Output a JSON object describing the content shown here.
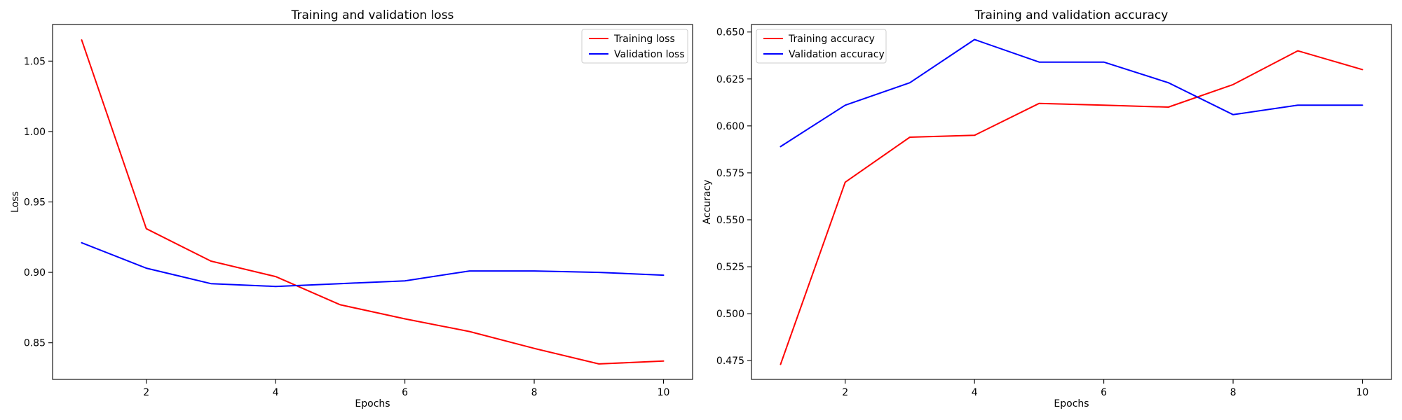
{
  "colors": {
    "training": "#ff0000",
    "validation": "#0000ff"
  },
  "chart_data": [
    {
      "type": "line",
      "title": "Training and validation loss",
      "xlabel": "Epochs",
      "ylabel": "Loss",
      "x": [
        1,
        2,
        3,
        4,
        5,
        6,
        7,
        8,
        9,
        10
      ],
      "xlim": [
        0.55,
        10.45
      ],
      "ylim": [
        0.824,
        1.076
      ],
      "xticks": [
        2,
        4,
        6,
        8,
        10
      ],
      "yticks": [
        0.85,
        0.9,
        0.95,
        1.0,
        1.05
      ],
      "xtick_labels": [
        "2",
        "4",
        "6",
        "8",
        "10"
      ],
      "ytick_labels": [
        "0.85",
        "0.90",
        "0.95",
        "1.00",
        "1.05"
      ],
      "grid": false,
      "legend": "upper right",
      "series": [
        {
          "name": "Training loss",
          "color": "#ff0000",
          "values": [
            1.065,
            0.931,
            0.908,
            0.897,
            0.877,
            0.867,
            0.858,
            0.846,
            0.835,
            0.837
          ]
        },
        {
          "name": "Validation loss",
          "color": "#0000ff",
          "values": [
            0.921,
            0.903,
            0.892,
            0.89,
            0.892,
            0.894,
            0.901,
            0.901,
            0.9,
            0.898
          ]
        }
      ]
    },
    {
      "type": "line",
      "title": "Training and validation accuracy",
      "xlabel": "Epochs",
      "ylabel": "Accuracy",
      "x": [
        1,
        2,
        3,
        4,
        5,
        6,
        7,
        8,
        9,
        10
      ],
      "xlim": [
        0.55,
        10.45
      ],
      "ylim": [
        0.465,
        0.654
      ],
      "xticks": [
        2,
        4,
        6,
        8,
        10
      ],
      "yticks": [
        0.475,
        0.5,
        0.525,
        0.55,
        0.575,
        0.6,
        0.625,
        0.65
      ],
      "xtick_labels": [
        "2",
        "4",
        "6",
        "8",
        "10"
      ],
      "ytick_labels": [
        "0.475",
        "0.500",
        "0.525",
        "0.550",
        "0.575",
        "0.600",
        "0.625",
        "0.650"
      ],
      "grid": false,
      "legend": "upper left",
      "series": [
        {
          "name": "Training accuracy",
          "color": "#ff0000",
          "values": [
            0.473,
            0.57,
            0.594,
            0.595,
            0.612,
            0.611,
            0.61,
            0.622,
            0.64,
            0.63
          ]
        },
        {
          "name": "Validation accuracy",
          "color": "#0000ff",
          "values": [
            0.589,
            0.611,
            0.623,
            0.646,
            0.634,
            0.634,
            0.623,
            0.606,
            0.611,
            0.611
          ]
        }
      ]
    }
  ]
}
